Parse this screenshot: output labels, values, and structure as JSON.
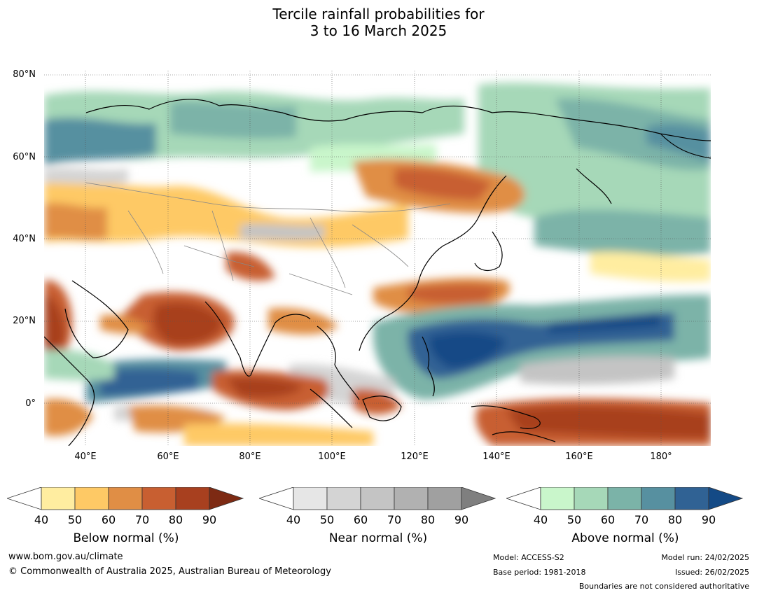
{
  "title": {
    "line1": "Tercile rainfall probabilities for",
    "line2": "3 to 16 March 2025"
  },
  "axes": {
    "latitude_labels": [
      "80°N",
      "60°N",
      "40°N",
      "20°N",
      "0°"
    ],
    "longitude_labels": [
      "40°E",
      "60°E",
      "80°E",
      "100°E",
      "120°E",
      "140°E",
      "160°E",
      "180°"
    ]
  },
  "colorbars": [
    {
      "label": "Below normal (%)",
      "ticks": [
        "40",
        "50",
        "60",
        "70",
        "80",
        "90"
      ],
      "colors": [
        "#ffeda0",
        "#fec965",
        "#e08e45",
        "#c85f31",
        "#a8401f",
        "#7d2a13"
      ]
    },
    {
      "label": "Near normal (%)",
      "ticks": [
        "40",
        "50",
        "60",
        "70",
        "80",
        "90"
      ],
      "colors": [
        "#e6e6e6",
        "#d4d4d4",
        "#c4c4c4",
        "#b1b1b1",
        "#a0a0a0",
        "#7f7f7f"
      ]
    },
    {
      "label": "Above normal (%)",
      "ticks": [
        "40",
        "50",
        "60",
        "70",
        "80",
        "90"
      ],
      "colors": [
        "#c9f6cb",
        "#a6d8b8",
        "#7bb3a8",
        "#5790a0",
        "#306294",
        "#144a86"
      ]
    }
  ],
  "footer": {
    "website": "www.bom.gov.au/climate",
    "copyright": "© Commonwealth of Australia 2025, Australian Bureau of Meteorology",
    "model": "Model: ACCESS-S2",
    "base_period": "Base period: 1981-2018",
    "model_run": "Model run: 24/02/2025",
    "issued": "Issued: 26/02/2025",
    "disclaimer": "Boundaries are not considered authoritative"
  },
  "colors": {
    "below_light": "#ffeda0",
    "below_mid": "#e08e45",
    "below_dark": "#a8401f",
    "near_light": "#e6e6e6",
    "near_mid": "#c4c4c4",
    "above_light": "#c9f6cb",
    "above_mid": "#7bb3a8",
    "above_dark": "#144a86"
  }
}
